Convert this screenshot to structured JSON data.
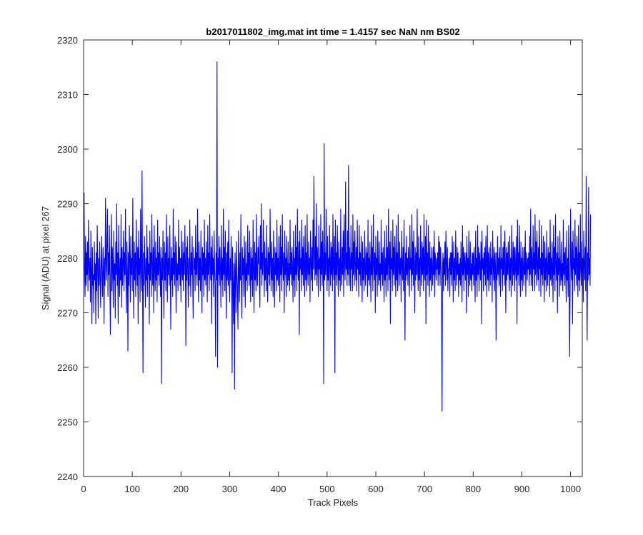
{
  "chart_data": {
    "type": "line",
    "title": "b2017011802_img.mat int time = 1.4157 sec  NaN nm BS02",
    "xlabel": "Track Pixels",
    "ylabel": "Signal (ADU) at pixel 267",
    "xlim": [
      0,
      1024
    ],
    "ylim": [
      2240,
      2320
    ],
    "xticks": [
      "0",
      "100",
      "200",
      "300",
      "400",
      "500",
      "600",
      "700",
      "800",
      "900",
      "1000"
    ],
    "yticks": [
      "2240",
      "2250",
      "2260",
      "2270",
      "2280",
      "2290",
      "2300",
      "2310",
      "2320"
    ],
    "grid": false,
    "series": [
      {
        "color": "#0000ff",
        "x_start": 1,
        "x_step": 1,
        "values": [
          2292,
          2278,
          2273,
          2284,
          2275,
          2281,
          2277,
          2283,
          2274,
          2287,
          2279,
          2276,
          2280,
          2272,
          2285,
          2278,
          2268,
          2282,
          2275,
          2277,
          2270,
          2283,
          2276,
          2279,
          2268,
          2281,
          2274,
          2286,
          2278,
          2269,
          2280,
          2275,
          2283,
          2277,
          2271,
          2279,
          2284,
          2276,
          2273,
          2282,
          2278,
          2268,
          2280,
          2275,
          2291,
          2279,
          2276,
          2284,
          2289,
          2273,
          2281,
          2277,
          2286,
          2275,
          2266,
          2280,
          2288,
          2274,
          2282,
          2278,
          2271,
          2285,
          2276,
          2279,
          2269,
          2283,
          2277,
          2290,
          2275,
          2281,
          2268,
          2286,
          2278,
          2273,
          2280,
          2276,
          2288,
          2271,
          2282,
          2275,
          2279,
          2285,
          2274,
          2281,
          2277,
          2289,
          2276,
          2270,
          2283,
          2278,
          2263,
          2281,
          2275,
          2286,
          2279,
          2272,
          2284,
          2277,
          2280,
          2274,
          2291,
          2278,
          2269,
          2283,
          2276,
          2281,
          2273,
          2287,
          2279,
          2275,
          2282,
          2268,
          2285,
          2277,
          2280,
          2272,
          2289,
          2278,
          2274,
          2296,
          2276,
          2259,
          2281,
          2275,
          2284,
          2278,
          2271,
          2280,
          2276,
          2286,
          2273,
          2282,
          2277,
          2279,
          2268,
          2285,
          2276,
          2281,
          2273,
          2288,
          2279,
          2275,
          2282,
          2270,
          2286,
          2278,
          2274,
          2283,
          2276,
          2280,
          2272,
          2287,
          2277,
          2281,
          2275,
          2284,
          2279,
          2273,
          2282,
          2257,
          2280,
          2276,
          2285,
          2278,
          2269,
          2283,
          2276,
          2281,
          2274,
          2288,
          2279,
          2272,
          2284,
          2277,
          2280,
          2275,
          2286,
          2278,
          2267,
          2282,
          2276,
          2280,
          2273,
          2289,
          2277,
          2281,
          2275,
          2284,
          2278,
          2270,
          2283,
          2276,
          2279,
          2274,
          2287,
          2277,
          2282,
          2275,
          2280,
          2272,
          2285,
          2278,
          2276,
          2283,
          2274,
          2281,
          2277,
          2286,
          2279,
          2264,
          2282,
          2276,
          2284,
          2278,
          2271,
          2280,
          2275,
          2287,
          2279,
          2273,
          2281,
          2277,
          2284,
          2276,
          2269,
          2282,
          2278,
          2280,
          2274,
          2286,
          2277,
          2281,
          2275,
          2289,
          2279,
          2272,
          2283,
          2276,
          2280,
          2274,
          2285,
          2278,
          2270,
          2282,
          2277,
          2281,
          2273,
          2287,
          2276,
          2280,
          2275,
          2283,
          2278,
          2272,
          2286,
          2277,
          2281,
          2274,
          2288,
          2279,
          2276,
          2282,
          2268,
          2284,
          2277,
          2280,
          2273,
          2285,
          2278,
          2275,
          2262,
          2281,
          2276,
          2316,
          2260,
          2280,
          2277,
          2284,
          2275,
          2282,
          2278,
          2271,
          2286,
          2276,
          2280,
          2273,
          2289,
          2277,
          2282,
          2274,
          2285,
          2278,
          2269,
          2281,
          2276,
          2283,
          2275,
          2287,
          2277,
          2272,
          2280,
          2276,
          2284,
          2278,
          2259,
          2282,
          2275,
          2268,
          2279,
          2256,
          2281,
          2276,
          2270,
          2283,
          2277,
          2274,
          2267,
          2285,
          2278,
          2272,
          2281,
          2276,
          2288,
          2275,
          2269,
          2282,
          2277,
          2280,
          2273,
          2284,
          2278,
          2271,
          2283,
          2276,
          2279,
          2274,
          2286,
          2277,
          2281,
          2275,
          2285,
          2279,
          2272,
          2282,
          2276,
          2280,
          2273,
          2287,
          2278,
          2270,
          2283,
          2276,
          2281,
          2274,
          2288,
          2277,
          2275,
          2282,
          2279,
          2284,
          2276,
          2271,
          2286,
          2278,
          2290,
          2275,
          2281,
          2277,
          2287,
          2279,
          2273,
          2283,
          2276,
          2280,
          2274,
          2286,
          2278,
          2272,
          2282,
          2277,
          2281,
          2275,
          2289,
          2279,
          2274,
          2283,
          2276,
          2280,
          2273,
          2285,
          2278,
          2271,
          2282,
          2277,
          2281,
          2274,
          2287,
          2276,
          2280,
          2275,
          2284,
          2278,
          2272,
          2286,
          2277,
          2282,
          2274,
          2288,
          2279,
          2276,
          2281,
          2270,
          2285,
          2277,
          2280,
          2273,
          2284,
          2278,
          2275,
          2283,
          2276,
          2279,
          2274,
          2287,
          2277,
          2281,
          2275,
          2282,
          2278,
          2272,
          2285,
          2276,
          2280,
          2273,
          2286,
          2277,
          2282,
          2274,
          2289,
          2279,
          2276,
          2283,
          2266,
          2285,
          2278,
          2280,
          2274,
          2287,
          2277,
          2282,
          2275,
          2284,
          2279,
          2273,
          2286,
          2276,
          2281,
          2274,
          2288,
          2278,
          2275,
          2283,
          2277,
          2280,
          2272,
          2285,
          2279,
          2276,
          2282,
          2274,
          2287,
          2278,
          2295,
          2281,
          2276,
          2284,
          2277,
          2290,
          2275,
          2282,
          2279,
          2273,
          2286,
          2278,
          2280,
          2274,
          2288,
          2277,
          2283,
          2275,
          2285,
          2279,
          2257,
          2301,
          2276,
          2281,
          2277,
          2289,
          2278,
          2274,
          2284,
          2276,
          2280,
          2273,
          2286,
          2279,
          2275,
          2283,
          2277,
          2282,
          2274,
          2288,
          2278,
          2276,
          2284,
          2259,
          2287,
          2277,
          2281,
          2275,
          2286,
          2279,
          2273,
          2283,
          2276,
          2280,
          2274,
          2289,
          2278,
          2275,
          2282,
          2277,
          2285,
          2273,
          2288,
          2279,
          2276,
          2294,
          2278,
          2281,
          2275,
          2285,
          2277,
          2297,
          2275,
          2282,
          2279,
          2274,
          2286,
          2278,
          2281,
          2274,
          2288,
          2277,
          2283,
          2275,
          2285,
          2279,
          2276,
          2282,
          2274,
          2287,
          2278,
          2280,
          2273,
          2286,
          2277,
          2281,
          2275,
          2284,
          2279,
          2272,
          2283,
          2276,
          2280,
          2274,
          2285,
          2278,
          2275,
          2282,
          2277,
          2281,
          2273,
          2287,
          2276,
          2280,
          2275,
          2283,
          2278,
          2272,
          2286,
          2277,
          2282,
          2274,
          2288,
          2279,
          2276,
          2281,
          2270,
          2284,
          2277,
          2280,
          2273,
          2285,
          2278,
          2275,
          2283,
          2276,
          2279,
          2274,
          2287,
          2277,
          2281,
          2275,
          2282,
          2278,
          2272,
          2285,
          2276,
          2280,
          2273,
          2286,
          2277,
          2282,
          2274,
          2289,
          2279,
          2276,
          2283,
          2268,
          2285,
          2278,
          2280,
          2274,
          2287,
          2277,
          2282,
          2275,
          2284,
          2279,
          2273,
          2286,
          2276,
          2281,
          2274,
          2288,
          2278,
          2275,
          2283,
          2277,
          2280,
          2272,
          2285,
          2279,
          2276,
          2282,
          2274,
          2287,
          2278,
          2265,
          2281,
          2276,
          2284,
          2277,
          2280,
          2275,
          2282,
          2279,
          2273,
          2286,
          2278,
          2280,
          2274,
          2288,
          2277,
          2283,
          2275,
          2285,
          2279,
          2270,
          2282,
          2276,
          2281,
          2277,
          2289,
          2278,
          2274,
          2284,
          2276,
          2280,
          2273,
          2286,
          2279,
          2275,
          2283,
          2277,
          2282,
          2274,
          2288,
          2278,
          2276,
          2284,
          2268,
          2287,
          2277,
          2281,
          2275,
          2286,
          2279,
          2273,
          2283,
          2276,
          2280,
          2274,
          2282,
          2278,
          2275,
          2282,
          2277,
          2285,
          2273,
          2281,
          2279,
          2276,
          2280,
          2278,
          2281,
          2275,
          2284,
          2277,
          2283,
          2275,
          2282,
          2279,
          2274,
          2252,
          2278,
          2281,
          2274,
          2280,
          2277,
          2283,
          2275,
          2285,
          2279,
          2276,
          2282,
          2274,
          2278,
          2278,
          2280,
          2273,
          2281,
          2277,
          2281,
          2275,
          2284,
          2279,
          2272,
          2283,
          2276,
          2280,
          2274,
          2285,
          2278,
          2275,
          2282,
          2277,
          2281,
          2273,
          2279,
          2276,
          2280,
          2275,
          2283,
          2278,
          2272,
          2286,
          2277,
          2282,
          2274,
          2281,
          2279,
          2276,
          2281,
          2270,
          2284,
          2277,
          2280,
          2273,
          2285,
          2278,
          2275,
          2283,
          2276,
          2279,
          2274,
          2281,
          2277,
          2281,
          2275,
          2282,
          2278,
          2272,
          2285,
          2276,
          2280,
          2273,
          2286,
          2277,
          2282,
          2274,
          2281,
          2279,
          2276,
          2283,
          2268,
          2285,
          2278,
          2280,
          2274,
          2281,
          2277,
          2282,
          2275,
          2284,
          2279,
          2273,
          2286,
          2276,
          2281,
          2274,
          2282,
          2278,
          2275,
          2283,
          2277,
          2280,
          2272,
          2285,
          2279,
          2276,
          2282,
          2274,
          2281,
          2278,
          2265,
          2281,
          2276,
          2284,
          2277,
          2280,
          2275,
          2282,
          2279,
          2273,
          2286,
          2278,
          2280,
          2274,
          2282,
          2277,
          2283,
          2275,
          2285,
          2279,
          2270,
          2282,
          2276,
          2281,
          2277,
          2283,
          2278,
          2274,
          2284,
          2276,
          2280,
          2273,
          2286,
          2279,
          2275,
          2283,
          2277,
          2282,
          2274,
          2282,
          2278,
          2276,
          2284,
          2268,
          2287,
          2277,
          2281,
          2275,
          2286,
          2279,
          2273,
          2283,
          2276,
          2280,
          2274,
          2282,
          2278,
          2275,
          2282,
          2277,
          2285,
          2273,
          2281,
          2279,
          2276,
          2280,
          2278,
          2281,
          2275,
          2284,
          2277,
          2289,
          2275,
          2282,
          2279,
          2274,
          2286,
          2278,
          2281,
          2274,
          2288,
          2277,
          2283,
          2275,
          2285,
          2279,
          2276,
          2282,
          2274,
          2287,
          2278,
          2280,
          2273,
          2286,
          2277,
          2281,
          2275,
          2284,
          2279,
          2272,
          2283,
          2276,
          2280,
          2274,
          2285,
          2278,
          2275,
          2282,
          2277,
          2281,
          2273,
          2287,
          2276,
          2280,
          2275,
          2283,
          2278,
          2272,
          2286,
          2277,
          2282,
          2274,
          2288,
          2279,
          2276,
          2281,
          2270,
          2284,
          2277,
          2280,
          2273,
          2285,
          2278,
          2275,
          2283,
          2276,
          2279,
          2274,
          2287,
          2277,
          2281,
          2275,
          2282,
          2278,
          2272,
          2285,
          2276,
          2280,
          2273,
          2286,
          2277,
          2262,
          2274,
          2289,
          2279,
          2276,
          2283,
          2268,
          2285,
          2278,
          2280,
          2274,
          2287,
          2277,
          2282,
          2275,
          2284,
          2279,
          2273,
          2286,
          2276,
          2281,
          2274,
          2288,
          2278,
          2275,
          2283,
          2277,
          2280,
          2272,
          2285,
          2279,
          2276,
          2282,
          2274,
          2295,
          2278,
          2265,
          2281,
          2276,
          2293,
          2277,
          2280,
          2275,
          2288
        ]
      }
    ]
  }
}
